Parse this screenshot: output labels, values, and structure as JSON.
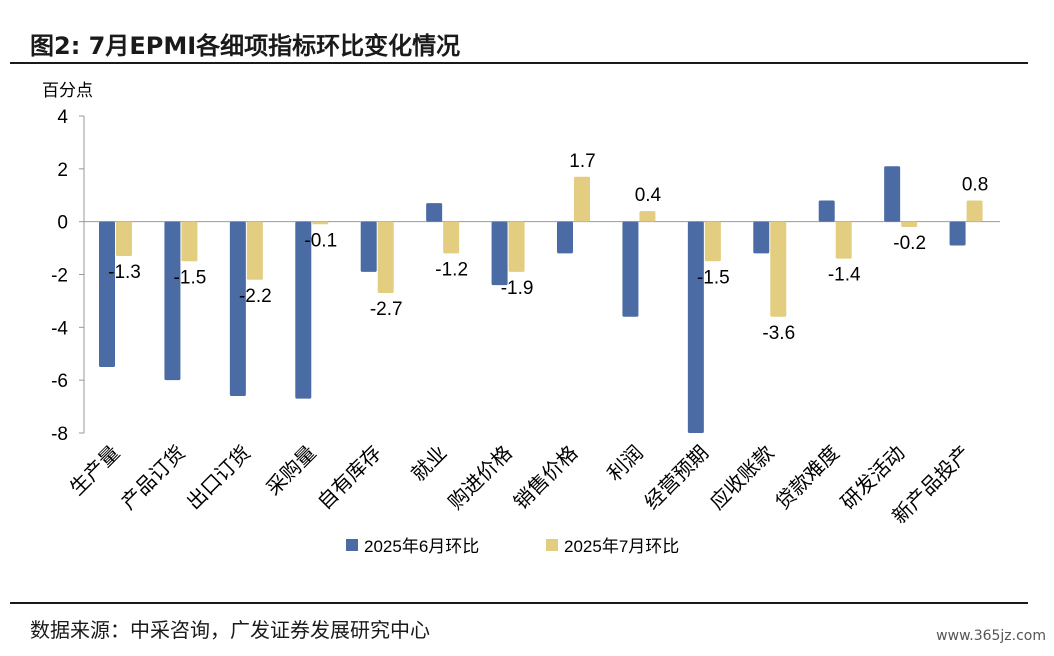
{
  "figure": {
    "title": "图2:   7月EPMI各细项指标环比变化情况",
    "source": "数据来源：中采咨询，广发证券发展研究中心",
    "watermark": "www.365jz.com"
  },
  "colors": {
    "series_june": "#4A6BA3",
    "series_july": "#E2CD80",
    "axis": "#999999",
    "text": "#000000"
  },
  "chart_data": {
    "type": "bar",
    "unit_label": "百分点",
    "categories": [
      "生产量",
      "产品订货",
      "出口订货",
      "采购量",
      "自有库存",
      "就业",
      "购进价格",
      "销售价格",
      "利润",
      "经营预期",
      "应收账款",
      "贷款难度",
      "研发活动",
      "新产品投产"
    ],
    "series": [
      {
        "name": "2025年6月环比",
        "values": [
          -5.5,
          -6.0,
          -6.6,
          -6.7,
          -1.9,
          0.7,
          -2.4,
          -1.2,
          -3.6,
          -8.0,
          -1.2,
          0.8,
          2.1,
          -0.9
        ]
      },
      {
        "name": "2025年7月环比",
        "values": [
          -1.3,
          -1.5,
          -2.2,
          -0.1,
          -2.7,
          -1.2,
          -1.9,
          1.7,
          0.4,
          -1.5,
          -3.6,
          -1.4,
          -0.2,
          0.8
        ]
      }
    ],
    "data_labels_series": "2025年7月环比",
    "ylim": [
      -8,
      4
    ],
    "yticks": [
      4,
      2,
      0,
      -2,
      -4,
      -6,
      -8
    ],
    "grid": false,
    "legend_position": "bottom"
  }
}
